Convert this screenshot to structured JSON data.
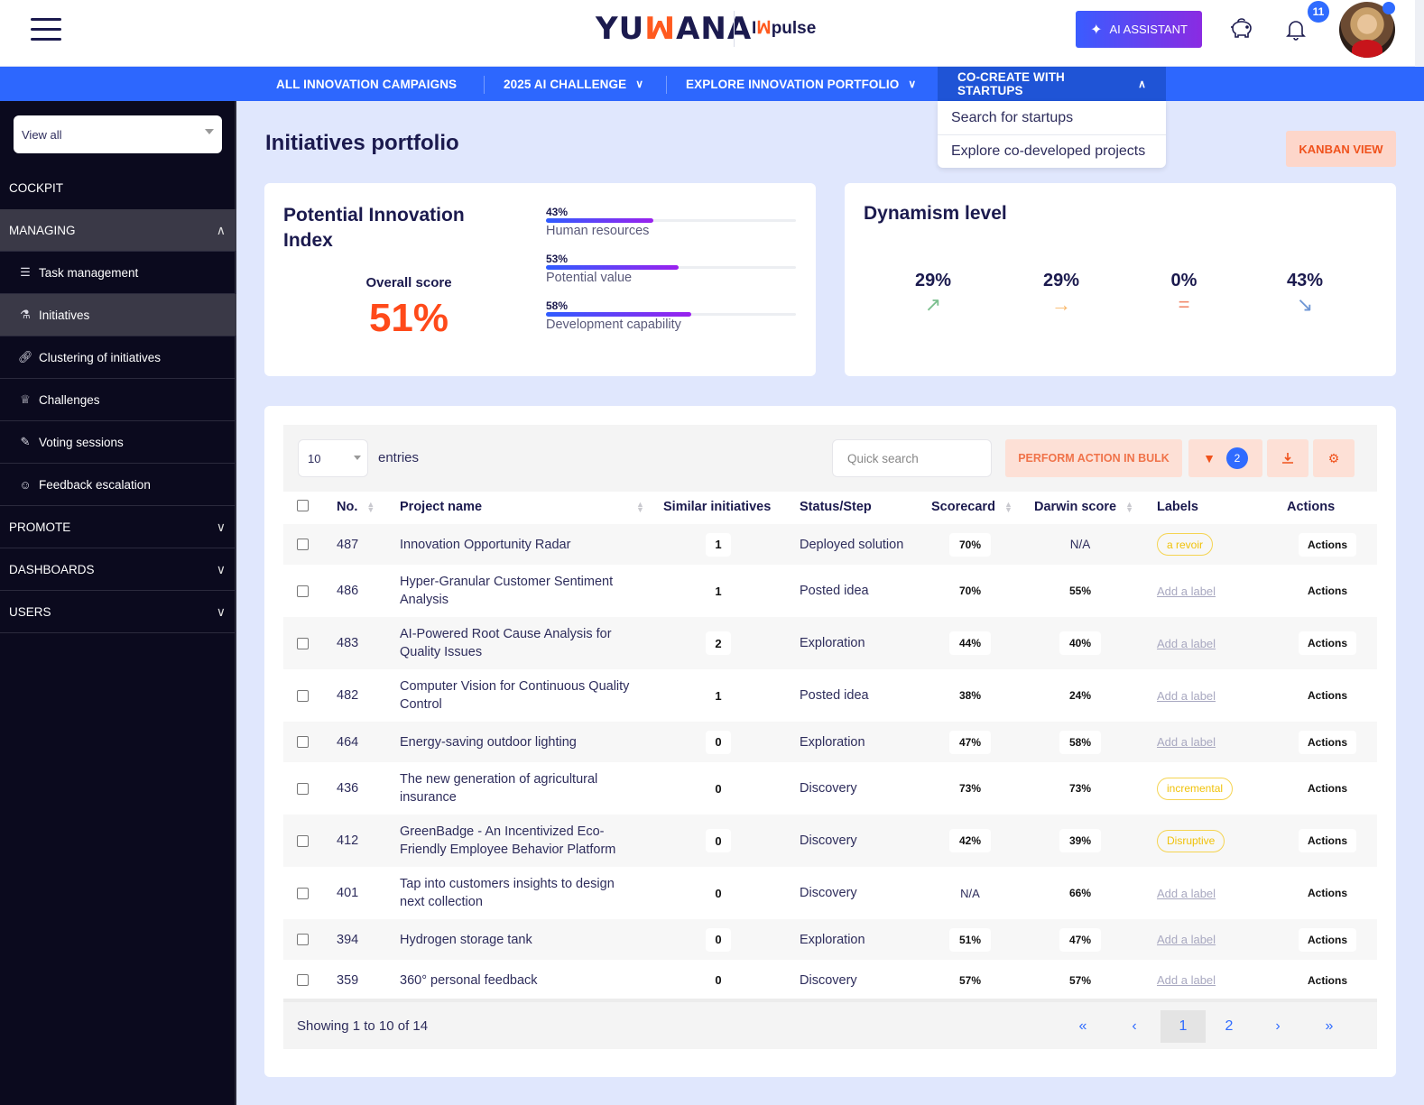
{
  "header": {
    "logo_main": "YUMANA",
    "logo_sub": "pulse",
    "ai_assistant_label": "AI ASSISTANT",
    "notification_count": "11"
  },
  "nav": {
    "items": [
      {
        "label": "ALL INNOVATION CAMPAIGNS",
        "has_chevron": false
      },
      {
        "label": "2025 AI CHALLENGE",
        "has_chevron": true
      },
      {
        "label": "EXPLORE INNOVATION PORTFOLIO",
        "has_chevron": true
      },
      {
        "label": "CO-CREATE WITH STARTUPS",
        "has_chevron": true,
        "open": true
      }
    ],
    "dropdown": [
      "Search for startups",
      "Explore co-developed projects"
    ]
  },
  "sidebar": {
    "view_select": "View all",
    "items": [
      {
        "label": "COCKPIT",
        "type": "section"
      },
      {
        "label": "MANAGING",
        "type": "section",
        "expanded": true
      },
      {
        "label": "Task management",
        "type": "sub",
        "icon": "task-list-icon"
      },
      {
        "label": "Initiatives",
        "type": "sub",
        "icon": "flask-icon",
        "active": true
      },
      {
        "label": "Clustering of initiatives",
        "type": "sub",
        "icon": "link-icon"
      },
      {
        "label": "Challenges",
        "type": "sub",
        "icon": "trophy-icon"
      },
      {
        "label": "Voting sessions",
        "type": "sub",
        "icon": "ballot-icon"
      },
      {
        "label": "Feedback escalation",
        "type": "sub",
        "icon": "smiley-icon"
      },
      {
        "label": "PROMOTE",
        "type": "section"
      },
      {
        "label": "DASHBOARDS",
        "type": "section"
      },
      {
        "label": "USERS",
        "type": "section"
      }
    ]
  },
  "main": {
    "title": "Initiatives portfolio",
    "kanban_label": "KANBAN VIEW"
  },
  "pii": {
    "title": "Potential Innovation Index",
    "overall_label": "Overall score",
    "overall_value": "51%",
    "bars": [
      {
        "pct": "43%",
        "value": 43,
        "label": "Human resources"
      },
      {
        "pct": "53%",
        "value": 53,
        "label": "Potential value"
      },
      {
        "pct": "58%",
        "value": 58,
        "label": "Development capability"
      }
    ]
  },
  "dynamism": {
    "title": "Dynamism level",
    "items": [
      {
        "value": "29%",
        "arrow": "↗",
        "color": "#7cc08f",
        "icon": "trend-up-icon"
      },
      {
        "value": "29%",
        "arrow": "→",
        "color": "#f9b86a",
        "icon": "trend-right-icon"
      },
      {
        "value": "0%",
        "arrow": "=",
        "color": "#f28b6e",
        "icon": "equal-icon"
      },
      {
        "value": "43%",
        "arrow": "↘",
        "color": "#6e96d4",
        "icon": "trend-down-icon"
      }
    ]
  },
  "table": {
    "entries_value": "10",
    "entries_label": "entries",
    "search_placeholder": "Quick search",
    "bulk_label": "PERFORM ACTION IN BULK",
    "filter_count": "2",
    "columns": [
      "No.",
      "Project name",
      "Similar initiatives",
      "Status/Step",
      "Scorecard",
      "Darwin score",
      "Labels",
      "Actions"
    ],
    "rows": [
      {
        "no": "487",
        "name": "Innovation Opportunity Radar",
        "similar": "1",
        "status": "Deployed solution",
        "scorecard": "70%",
        "darwin": "N/A",
        "label": "a revoir",
        "action": "Actions"
      },
      {
        "no": "486",
        "name": "Hyper-Granular Customer Sentiment Analysis",
        "similar": "1",
        "status": "Posted idea",
        "scorecard": "70%",
        "darwin": "55%",
        "label": "",
        "action": "Actions"
      },
      {
        "no": "483",
        "name": "AI-Powered Root Cause Analysis for Quality Issues",
        "similar": "2",
        "status": "Exploration",
        "scorecard": "44%",
        "darwin": "40%",
        "label": "",
        "action": "Actions"
      },
      {
        "no": "482",
        "name": "Computer Vision for Continuous Quality Control",
        "similar": "1",
        "status": "Posted idea",
        "scorecard": "38%",
        "darwin": "24%",
        "label": "",
        "action": "Actions"
      },
      {
        "no": "464",
        "name": "Energy-saving outdoor lighting",
        "similar": "0",
        "status": "Exploration",
        "scorecard": "47%",
        "darwin": "58%",
        "label": "",
        "action": "Actions"
      },
      {
        "no": "436",
        "name": "The new generation of agricultural insurance",
        "similar": "0",
        "status": "Discovery",
        "scorecard": "73%",
        "darwin": "73%",
        "label": "incremental",
        "action": "Actions"
      },
      {
        "no": "412",
        "name": "GreenBadge - An Incentivized Eco-Friendly Employee Behavior Platform",
        "similar": "0",
        "status": "Discovery",
        "scorecard": "42%",
        "darwin": "39%",
        "label": "Disruptive",
        "action": "Actions"
      },
      {
        "no": "401",
        "name": "Tap into customers insights to design next collection",
        "similar": "0",
        "status": "Discovery",
        "scorecard": "N/A",
        "darwin": "66%",
        "label": "",
        "action": "Actions"
      },
      {
        "no": "394",
        "name": "Hydrogen storage tank",
        "similar": "0",
        "status": "Exploration",
        "scorecard": "51%",
        "darwin": "47%",
        "label": "",
        "action": "Actions"
      },
      {
        "no": "359",
        "name": "360° personal feedback",
        "similar": "0",
        "status": "Discovery",
        "scorecard": "57%",
        "darwin": "57%",
        "label": "",
        "action": "Actions"
      }
    ],
    "add_label_text": "Add a label",
    "showing": "Showing 1 to 10 of 14",
    "pagination": {
      "first": "«",
      "prev": "‹",
      "pages": [
        "1",
        "2"
      ],
      "current": "1",
      "next": "›",
      "last": "»"
    }
  },
  "colors": {
    "brand_blue": "#2d67fe",
    "accent_orange": "#ff4a1a",
    "sidebar_bg": "#0b0a1e",
    "page_bg": "#e0e7fd",
    "label_yellow": "#f0c20a"
  }
}
